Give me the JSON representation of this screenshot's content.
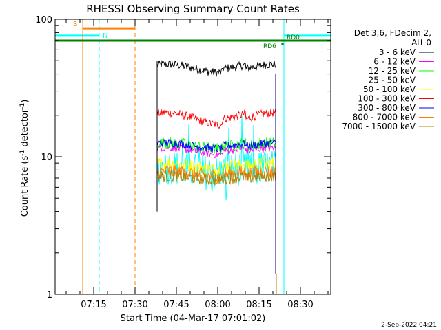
{
  "chart_data": {
    "type": "line",
    "title": "RHESSI Observing Summary Count Rates",
    "xlabel": "Start Time (04-Mar-17 07:01:02)",
    "ylabel_prefix": "Count Rate (s",
    "ylabel_mid": " detector",
    "ylabel_suffix": ")",
    "ylabel_exp": "-1",
    "yscale": "log",
    "ylim": [
      1,
      100
    ],
    "xlim_minutes": [
      0,
      100
    ],
    "xticks": [
      {
        "minutes": 14,
        "label": "07:15"
      },
      {
        "minutes": 29,
        "label": "07:30"
      },
      {
        "minutes": 44,
        "label": "07:45"
      },
      {
        "minutes": 59,
        "label": "08:00"
      },
      {
        "minutes": 74,
        "label": "08:15"
      },
      {
        "minutes": 89,
        "label": "08:30"
      }
    ],
    "yticks": [
      {
        "value": 1,
        "label": "1"
      },
      {
        "value": 10,
        "label": "10"
      },
      {
        "value": 100,
        "label": "100"
      }
    ],
    "data_interval_minutes": [
      37,
      80
    ],
    "legend": {
      "header_line1": "Det 3,6, FDecim 2,",
      "header_line2": "Att 0",
      "position": "right"
    },
    "series": [
      {
        "name": "3 - 6 keV",
        "color": "#000000",
        "base": 44,
        "spread": 0.07,
        "bump": 0.07
      },
      {
        "name": "6 - 12 keV",
        "color": "#ff00ff",
        "base": 11,
        "spread": 0.06,
        "bump": 0.06
      },
      {
        "name": "12 - 25 keV",
        "color": "#00ff00",
        "base": 12,
        "spread": 0.1,
        "bump": 0.05
      },
      {
        "name": "25 - 50 keV",
        "color": "#00ffff",
        "base": 8,
        "spread": 0.3,
        "bump": 0.05
      },
      {
        "name": "50 - 100 keV",
        "color": "#ffff00",
        "base": 8.5,
        "spread": 0.12,
        "bump": 0.05
      },
      {
        "name": "100 - 300 keV",
        "color": "#ff0000",
        "base": 19,
        "spread": 0.07,
        "bump": 0.1
      },
      {
        "name": "300 - 800 keV",
        "color": "#0000ff",
        "base": 12,
        "spread": 0.07,
        "bump": 0.05
      },
      {
        "name": "800 - 7000 keV",
        "color": "#ff8000",
        "base": 7.5,
        "spread": 0.12,
        "bump": 0.04
      },
      {
        "name": "7000 - 15000 keV",
        "color": "#b08000",
        "base": 7,
        "spread": 0.1,
        "bump": 0.03
      }
    ],
    "flags": {
      "saa_label": "S",
      "saa_color": "#ff8000",
      "saa_interval_minutes": [
        10,
        29
      ],
      "night_label": "N",
      "night_color": "#00ffff",
      "night_intervals_minutes": [
        [
          0,
          16
        ],
        [
          83,
          100
        ]
      ],
      "decimation_color": "#008000",
      "decimation_level": 70,
      "rd_labels": [
        "RD6",
        "RD0"
      ]
    }
  },
  "footer": {
    "timestamp": "2-Sep-2022 04:21"
  }
}
